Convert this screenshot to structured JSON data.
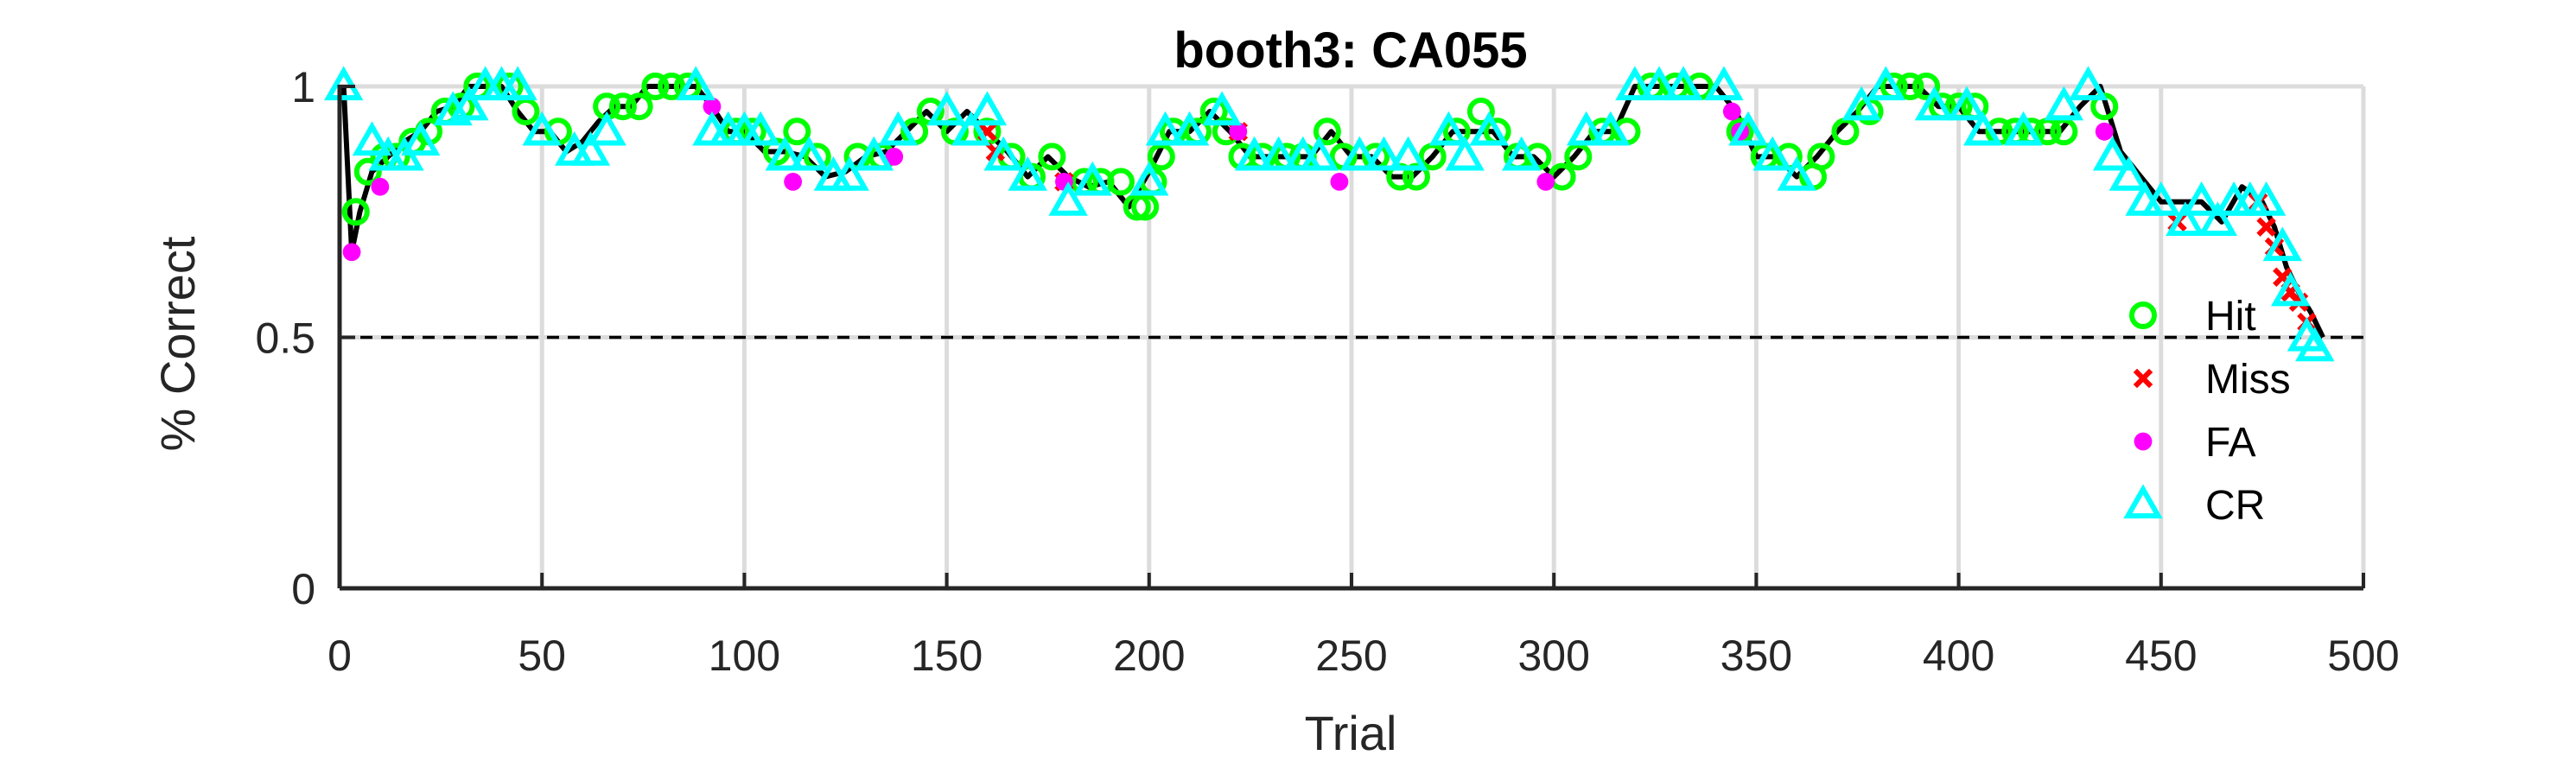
{
  "chart_data": {
    "type": "scatter",
    "title": "booth3: CA055",
    "xlabel": "Trial",
    "ylabel": "% Correct",
    "xlim": [
      0,
      500
    ],
    "ylim": [
      0,
      1
    ],
    "xticks": [
      "0",
      "50",
      "100",
      "150",
      "200",
      "250",
      "300",
      "350",
      "400",
      "450",
      "500"
    ],
    "yticks": [
      "0",
      "0.5",
      "1"
    ],
    "grid": true,
    "chance_line": 0.5,
    "legend_position": "right",
    "line_series": {
      "x": [
        1,
        3,
        5,
        8,
        12,
        16,
        20,
        24,
        28,
        32,
        36,
        40,
        44,
        48,
        52,
        56,
        60,
        64,
        68,
        72,
        76,
        80,
        84,
        88,
        92,
        96,
        100,
        105,
        110,
        115,
        120,
        125,
        130,
        135,
        140,
        145,
        150,
        155,
        160,
        165,
        170,
        175,
        180,
        185,
        190,
        195,
        200,
        205,
        210,
        215,
        220,
        225,
        230,
        235,
        240,
        245,
        250,
        255,
        260,
        265,
        270,
        275,
        280,
        285,
        290,
        295,
        300,
        305,
        310,
        315,
        320,
        325,
        330,
        335,
        340,
        345,
        350,
        355,
        360,
        365,
        370,
        375,
        380,
        385,
        390,
        395,
        400,
        405,
        410,
        415,
        420,
        425,
        430,
        435,
        440,
        445,
        450,
        455,
        460,
        465,
        470,
        475,
        478,
        481,
        484,
        487,
        490
      ],
      "y": [
        1.0,
        0.67,
        0.75,
        0.83,
        0.86,
        0.89,
        0.91,
        0.95,
        0.96,
        1.0,
        1.0,
        1.0,
        0.95,
        0.91,
        0.91,
        0.87,
        0.89,
        0.93,
        0.96,
        0.96,
        1.0,
        1.0,
        1.0,
        1.0,
        0.96,
        0.91,
        0.91,
        0.87,
        0.87,
        0.86,
        0.82,
        0.83,
        0.86,
        0.87,
        0.91,
        0.95,
        0.91,
        0.95,
        0.91,
        0.87,
        0.82,
        0.86,
        0.82,
        0.8,
        0.81,
        0.76,
        0.83,
        0.91,
        0.91,
        0.95,
        0.91,
        0.86,
        0.86,
        0.86,
        0.86,
        0.91,
        0.86,
        0.86,
        0.82,
        0.82,
        0.86,
        0.91,
        0.91,
        0.91,
        0.86,
        0.86,
        0.82,
        0.86,
        0.91,
        0.91,
        1.0,
        1.0,
        1.0,
        1.0,
        1.0,
        0.95,
        0.86,
        0.86,
        0.82,
        0.86,
        0.91,
        0.95,
        1.0,
        1.0,
        1.0,
        0.96,
        0.96,
        0.91,
        0.91,
        0.91,
        0.91,
        0.91,
        0.96,
        1.0,
        0.87,
        0.82,
        0.77,
        0.77,
        0.77,
        0.73,
        0.8,
        0.77,
        0.72,
        0.64,
        0.59,
        0.55,
        0.5
      ]
    },
    "series": [
      {
        "name": "Hit",
        "color": "#00ff00",
        "marker": "circle",
        "x": [
          4,
          7,
          11,
          14,
          18,
          22,
          26,
          30,
          34,
          42,
          46,
          54,
          66,
          70,
          74,
          78,
          82,
          86,
          98,
          102,
          108,
          113,
          118,
          128,
          134,
          142,
          146,
          152,
          160,
          166,
          171,
          176,
          184,
          188,
          193,
          197,
          199,
          201,
          203,
          206,
          212,
          216,
          219,
          223,
          228,
          234,
          238,
          244,
          248,
          256,
          262,
          266,
          270,
          276,
          282,
          286,
          291,
          296,
          302,
          306,
          312,
          318,
          324,
          330,
          336,
          346,
          352,
          358,
          364,
          366,
          372,
          378,
          384,
          388,
          392,
          396,
          400,
          404,
          410,
          414,
          418,
          422,
          426,
          436
        ],
        "y": [
          0.75,
          0.83,
          0.86,
          0.86,
          0.89,
          0.91,
          0.95,
          0.96,
          1.0,
          1.0,
          0.95,
          0.91,
          0.96,
          0.96,
          0.96,
          1.0,
          1.0,
          1.0,
          0.91,
          0.91,
          0.87,
          0.91,
          0.86,
          0.86,
          0.86,
          0.91,
          0.95,
          0.91,
          0.91,
          0.86,
          0.82,
          0.86,
          0.81,
          0.81,
          0.81,
          0.76,
          0.76,
          0.81,
          0.86,
          0.91,
          0.91,
          0.95,
          0.91,
          0.86,
          0.86,
          0.86,
          0.86,
          0.91,
          0.86,
          0.86,
          0.82,
          0.82,
          0.86,
          0.91,
          0.95,
          0.91,
          0.86,
          0.86,
          0.82,
          0.86,
          0.91,
          0.91,
          1.0,
          1.0,
          1.0,
          0.91,
          0.86,
          0.86,
          0.82,
          0.86,
          0.91,
          0.95,
          1.0,
          1.0,
          1.0,
          0.96,
          0.96,
          0.96,
          0.91,
          0.91,
          0.91,
          0.91,
          0.91,
          0.96
        ]
      },
      {
        "name": "Miss",
        "color": "#ff0000",
        "marker": "x",
        "x": [
          160,
          162,
          179,
          222,
          454,
          474,
          476,
          478,
          480,
          482,
          484,
          486
        ],
        "y": [
          0.91,
          0.87,
          0.81,
          0.91,
          0.73,
          0.77,
          0.72,
          0.68,
          0.62,
          0.59,
          0.57,
          0.53
        ],
        "marker_size_scale": 1
      },
      {
        "name": "FA",
        "color": "#ff00ff",
        "marker": "dot",
        "x": [
          3,
          10,
          92,
          112,
          137,
          179,
          222,
          247,
          298,
          344,
          346,
          436
        ],
        "y": [
          0.67,
          0.8,
          0.96,
          0.81,
          0.86,
          0.81,
          0.91,
          0.81,
          0.81,
          0.95,
          0.91,
          0.91
        ]
      },
      {
        "name": "CR",
        "color": "#00ffff",
        "marker": "triangle",
        "x": [
          1,
          8,
          12,
          16,
          20,
          28,
          32,
          36,
          40,
          44,
          50,
          58,
          62,
          66,
          88,
          92,
          96,
          100,
          104,
          110,
          116,
          122,
          126,
          132,
          138,
          150,
          156,
          160,
          164,
          170,
          180,
          186,
          200,
          204,
          210,
          218,
          226,
          232,
          238,
          242,
          252,
          258,
          264,
          274,
          278,
          284,
          292,
          308,
          314,
          320,
          326,
          332,
          342,
          348,
          354,
          360,
          376,
          382,
          394,
          402,
          406,
          416,
          426,
          432,
          438,
          442,
          446,
          450,
          456,
          460,
          464,
          468,
          472,
          476,
          480,
          482,
          486,
          488
        ],
        "y": [
          1.0,
          0.89,
          0.86,
          0.86,
          0.89,
          0.95,
          0.96,
          1.0,
          1.0,
          1.0,
          0.91,
          0.87,
          0.87,
          0.91,
          1.0,
          0.91,
          0.91,
          0.91,
          0.91,
          0.86,
          0.86,
          0.82,
          0.82,
          0.86,
          0.91,
          0.95,
          0.91,
          0.95,
          0.86,
          0.82,
          0.77,
          0.81,
          0.81,
          0.91,
          0.91,
          0.95,
          0.86,
          0.86,
          0.86,
          0.86,
          0.86,
          0.86,
          0.86,
          0.91,
          0.86,
          0.91,
          0.86,
          0.91,
          0.91,
          1.0,
          1.0,
          1.0,
          1.0,
          0.91,
          0.86,
          0.82,
          0.96,
          1.0,
          0.96,
          0.96,
          0.91,
          0.91,
          0.96,
          1.0,
          0.86,
          0.82,
          0.77,
          0.77,
          0.73,
          0.77,
          0.73,
          0.77,
          0.77,
          0.77,
          0.68,
          0.59,
          0.5,
          0.48
        ]
      }
    ],
    "legend": [
      {
        "label": "Hit",
        "color": "#00ff00",
        "marker": "circle"
      },
      {
        "label": "Miss",
        "color": "#ff0000",
        "marker": "x"
      },
      {
        "label": "FA",
        "color": "#ff00ff",
        "marker": "dot"
      },
      {
        "label": "CR",
        "color": "#00ffff",
        "marker": "triangle"
      }
    ]
  }
}
